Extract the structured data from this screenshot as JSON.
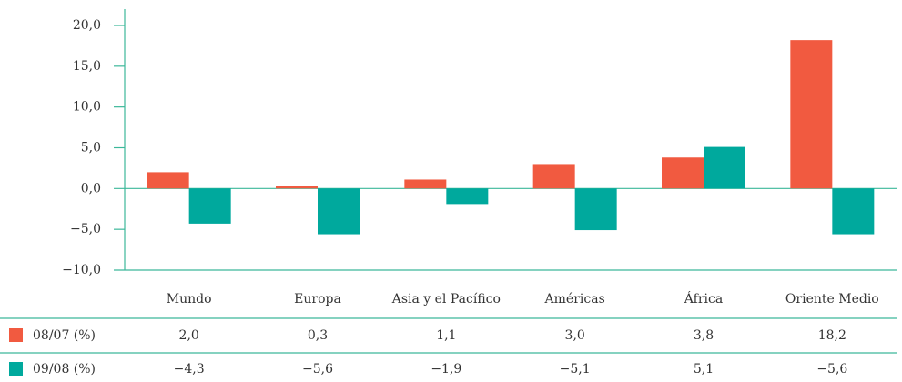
{
  "chart_data": {
    "type": "bar",
    "categories": [
      "Mundo",
      "Europa",
      "Asia y el Pacífico",
      "Américas",
      "África",
      "Oriente Medio"
    ],
    "series": [
      {
        "name": "08/07 (%)",
        "color": "#f15a40",
        "values": [
          2.0,
          0.3,
          1.1,
          3.0,
          3.8,
          18.2
        ],
        "value_labels": [
          "2,0",
          "0,3",
          "1,1",
          "3,0",
          "3,8",
          "18,2"
        ]
      },
      {
        "name": "09/08 (%)",
        "color": "#00a99d",
        "values": [
          -4.3,
          -5.6,
          -1.9,
          -5.1,
          5.1,
          -5.6
        ],
        "value_labels": [
          "−4,3",
          "−5,6",
          "−1,9",
          "−5,1",
          "5,1",
          "−5,6"
        ]
      }
    ],
    "ylim": [
      -10,
      20
    ],
    "yticks": [
      {
        "value": 20,
        "label": "20,0"
      },
      {
        "value": 15,
        "label": "15,0"
      },
      {
        "value": 10,
        "label": "10,0"
      },
      {
        "value": 5,
        "label": "5,0"
      },
      {
        "value": 0,
        "label": "0,0"
      },
      {
        "value": -5,
        "label": "−5,0"
      },
      {
        "value": -10,
        "label": "−10,0"
      }
    ],
    "axis_color": "#3cb89a"
  }
}
